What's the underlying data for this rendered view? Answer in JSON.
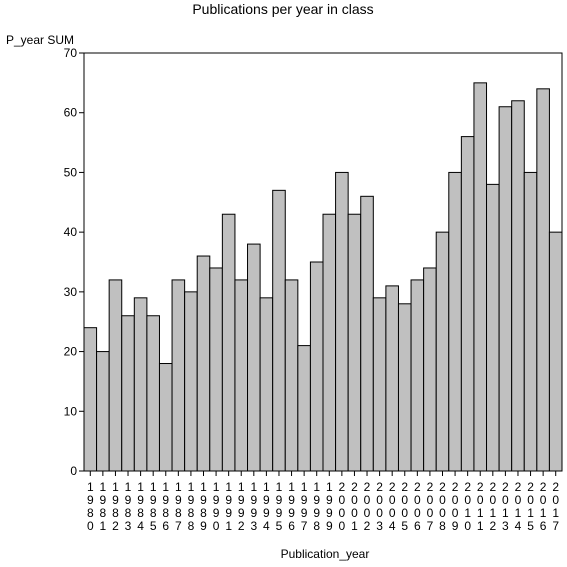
{
  "chart_data": {
    "type": "bar",
    "title": "Publications per year in class",
    "xlabel": "Publication_year",
    "ylabel": "P_year SUM",
    "ylim": [
      0,
      70
    ],
    "yticks": [
      0,
      10,
      20,
      30,
      40,
      50,
      60,
      70
    ],
    "grid": false,
    "legend": "none",
    "bar_color": "#c0c0c0",
    "categories": [
      "1980",
      "1981",
      "1982",
      "1983",
      "1984",
      "1985",
      "1986",
      "1987",
      "1988",
      "1989",
      "1990",
      "1991",
      "1992",
      "1993",
      "1994",
      "1995",
      "1996",
      "1997",
      "1998",
      "1999",
      "2000",
      "2001",
      "2002",
      "2003",
      "2004",
      "2005",
      "2006",
      "2007",
      "2008",
      "2009",
      "2010",
      "2011",
      "2012",
      "2013",
      "2014",
      "2015",
      "2016",
      "2017"
    ],
    "values": [
      24,
      20,
      32,
      26,
      29,
      26,
      18,
      32,
      30,
      36,
      34,
      43,
      32,
      38,
      29,
      47,
      32,
      21,
      35,
      43,
      50,
      43,
      46,
      29,
      31,
      28,
      32,
      34,
      40,
      50,
      56,
      65,
      48,
      61,
      62,
      50,
      64,
      40
    ]
  }
}
